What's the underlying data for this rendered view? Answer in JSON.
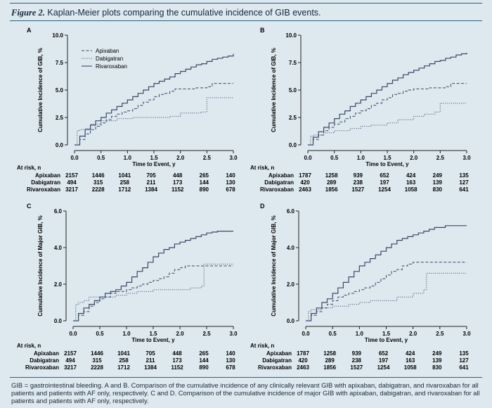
{
  "figure": {
    "label": "Figure 2.",
    "title": "Kaplan-Meier plots comparing the cumulative incidence of GIB events."
  },
  "caption": "GIB = gastrointestinal bleeding. A and B. Comparison of the cumulative incidence of any clinically relevant GIB with apixaban, dabigatran, and rivaroxaban for all patients and patients with AF only, respectively. C and D. Comparison of the cumulative incidence of major GIB with apixaban, dabigatran, and rivaroxaban for all patients and patients with AF only, respectively.",
  "colors": {
    "background": "#dde8ef",
    "line": "#3a4a68",
    "rule": "#2f5f82"
  },
  "chart_data": [
    {
      "type": "line",
      "panel": "A",
      "ylabel": "Cumulative Incidence of GIB, %",
      "xlabel": "Time to Event, y",
      "xlim": [
        0,
        3
      ],
      "ylim": [
        0,
        10
      ],
      "xticks": [
        "0.0",
        "0.5",
        "1.0",
        "1.5",
        "2.0",
        "2.5",
        "3.0"
      ],
      "yticks": [
        "0.0",
        "2.5",
        "5.0",
        "7.5",
        "10.0"
      ],
      "legend": true,
      "series": [
        {
          "name": "Apixaban",
          "style": "dashed",
          "x": [
            0,
            0.1,
            0.2,
            0.3,
            0.4,
            0.5,
            0.6,
            0.7,
            0.8,
            0.9,
            1.0,
            1.1,
            1.2,
            1.3,
            1.4,
            1.5,
            1.6,
            1.7,
            1.8,
            1.9,
            2.0,
            2.1,
            2.2,
            2.3,
            2.4,
            2.5,
            2.6,
            2.7,
            2.8,
            2.9,
            3.0
          ],
          "y": [
            0,
            0.5,
            1.0,
            1.4,
            1.7,
            2.0,
            2.3,
            2.6,
            2.8,
            3.0,
            3.1,
            3.3,
            3.6,
            3.9,
            4.1,
            4.4,
            4.6,
            4.7,
            4.9,
            5.1,
            5.1,
            5.1,
            5.1,
            5.2,
            5.2,
            5.3,
            5.6,
            5.6,
            5.6,
            5.6,
            5.6
          ]
        },
        {
          "name": "Dabigatran",
          "style": "dotted",
          "x": [
            0,
            0.05,
            0.1,
            0.2,
            0.3,
            0.5,
            0.8,
            1.0,
            1.1,
            1.2,
            1.5,
            1.8,
            2.0,
            2.1,
            2.2,
            2.4,
            2.5,
            3.0
          ],
          "y": [
            0,
            1.3,
            1.4,
            1.5,
            1.9,
            2.2,
            2.4,
            2.4,
            2.5,
            2.5,
            2.5,
            2.6,
            2.9,
            2.9,
            2.9,
            3.0,
            4.3,
            4.3
          ]
        },
        {
          "name": "Rivaroxaban",
          "style": "solid",
          "x": [
            0,
            0.1,
            0.2,
            0.3,
            0.4,
            0.5,
            0.6,
            0.7,
            0.8,
            0.9,
            1.0,
            1.1,
            1.2,
            1.3,
            1.4,
            1.5,
            1.6,
            1.7,
            1.8,
            1.9,
            2.0,
            2.1,
            2.2,
            2.3,
            2.4,
            2.5,
            2.6,
            2.7,
            2.8,
            2.9,
            3.0
          ],
          "y": [
            0,
            0.8,
            1.4,
            1.8,
            2.2,
            2.5,
            2.9,
            3.2,
            3.5,
            3.8,
            4.1,
            4.4,
            4.7,
            5.0,
            5.3,
            5.6,
            5.8,
            6.0,
            6.2,
            6.5,
            6.7,
            6.9,
            7.1,
            7.3,
            7.4,
            7.6,
            7.8,
            7.9,
            8.0,
            8.1,
            8.3
          ]
        }
      ],
      "at_risk": {
        "label": "At risk, n",
        "rows": [
          {
            "name": "Apixaban",
            "values": [
              "2157",
              "1446",
              "1041",
              "705",
              "448",
              "265",
              "140"
            ]
          },
          {
            "name": "Dabigatran",
            "values": [
              "494",
              "315",
              "258",
              "211",
              "173",
              "144",
              "130"
            ]
          },
          {
            "name": "Rivaroxaban",
            "values": [
              "3217",
              "2228",
              "1712",
              "1384",
              "1152",
              "890",
              "678"
            ]
          }
        ]
      }
    },
    {
      "type": "line",
      "panel": "B",
      "ylabel": "Cumulative Incidence of GIB, %",
      "xlabel": "Time to Event, y",
      "xlim": [
        0,
        3
      ],
      "ylim": [
        0,
        10
      ],
      "xticks": [
        "0.0",
        "0.5",
        "1.0",
        "1.5",
        "2.0",
        "2.5",
        "3.0"
      ],
      "yticks": [
        "0.0",
        "2.5",
        "5.0",
        "7.5",
        "10.0"
      ],
      "legend": false,
      "series": [
        {
          "name": "Apixaban",
          "style": "dashed",
          "x": [
            0,
            0.1,
            0.2,
            0.3,
            0.4,
            0.5,
            0.6,
            0.7,
            0.8,
            0.9,
            1.0,
            1.1,
            1.2,
            1.3,
            1.4,
            1.5,
            1.6,
            1.7,
            1.8,
            1.9,
            2.0,
            2.1,
            2.2,
            2.3,
            2.4,
            2.5,
            2.6,
            2.7,
            2.8,
            2.9,
            3.0
          ],
          "y": [
            0,
            0.5,
            0.9,
            1.3,
            1.6,
            1.9,
            2.1,
            2.4,
            2.6,
            2.9,
            3.1,
            3.3,
            3.6,
            3.8,
            4.1,
            4.3,
            4.6,
            4.7,
            4.9,
            5.0,
            5.1,
            5.1,
            5.1,
            5.2,
            5.2,
            5.2,
            5.3,
            5.6,
            5.6,
            5.6,
            5.6
          ]
        },
        {
          "name": "Dabigatran",
          "style": "dotted",
          "x": [
            0,
            0.05,
            0.1,
            0.3,
            0.5,
            0.8,
            1.0,
            1.2,
            1.5,
            1.7,
            2.0,
            2.2,
            2.4,
            2.5,
            3.0
          ],
          "y": [
            0,
            0.8,
            0.9,
            1.1,
            1.3,
            1.5,
            1.7,
            1.8,
            2.0,
            2.3,
            2.6,
            2.8,
            3.0,
            3.8,
            3.8
          ]
        },
        {
          "name": "Rivaroxaban",
          "style": "solid",
          "x": [
            0,
            0.1,
            0.2,
            0.3,
            0.4,
            0.5,
            0.6,
            0.7,
            0.8,
            0.9,
            1.0,
            1.1,
            1.2,
            1.3,
            1.4,
            1.5,
            1.6,
            1.7,
            1.8,
            1.9,
            2.0,
            2.1,
            2.2,
            2.3,
            2.4,
            2.5,
            2.6,
            2.7,
            2.8,
            2.9,
            3.0
          ],
          "y": [
            0,
            0.7,
            1.2,
            1.6,
            2.0,
            2.4,
            2.8,
            3.1,
            3.5,
            3.8,
            4.1,
            4.4,
            4.7,
            5.0,
            5.3,
            5.6,
            5.9,
            6.1,
            6.4,
            6.6,
            6.8,
            7.0,
            7.2,
            7.4,
            7.6,
            7.7,
            7.9,
            8.0,
            8.2,
            8.3,
            8.4
          ]
        }
      ],
      "at_risk": {
        "label": "At risk, n",
        "rows": [
          {
            "name": "Apixaban",
            "values": [
              "1787",
              "1258",
              "939",
              "652",
              "424",
              "249",
              "135"
            ]
          },
          {
            "name": "Dabigatran",
            "values": [
              "420",
              "289",
              "238",
              "197",
              "163",
              "139",
              "127"
            ]
          },
          {
            "name": "Rivaroxaban",
            "values": [
              "2463",
              "1856",
              "1527",
              "1254",
              "1058",
              "830",
              "641"
            ]
          }
        ]
      }
    },
    {
      "type": "line",
      "panel": "C",
      "ylabel": "Cumulative Incidence of Major GIB, %",
      "xlabel": "Time to Event, y",
      "xlim": [
        0,
        3
      ],
      "ylim": [
        0,
        6
      ],
      "xticks": [
        "0.0",
        "0.5",
        "1.0",
        "1.5",
        "2.0",
        "2.5",
        "3.0"
      ],
      "yticks": [
        "0.0",
        "2.0",
        "4.0",
        "6.0"
      ],
      "legend": false,
      "series": [
        {
          "name": "Apixaban",
          "style": "dashed",
          "x": [
            0,
            0.1,
            0.2,
            0.3,
            0.4,
            0.5,
            0.6,
            0.7,
            0.8,
            0.9,
            1.0,
            1.1,
            1.2,
            1.3,
            1.4,
            1.5,
            1.6,
            1.7,
            1.8,
            1.9,
            2.0,
            2.1,
            2.2,
            2.3,
            2.4,
            2.5,
            2.6,
            2.7,
            2.8,
            2.9,
            3.0
          ],
          "y": [
            0,
            0.3,
            0.5,
            0.8,
            1.0,
            1.2,
            1.3,
            1.5,
            1.6,
            1.6,
            1.7,
            1.8,
            1.9,
            2.0,
            2.1,
            2.2,
            2.3,
            2.4,
            2.6,
            2.8,
            2.9,
            3.0,
            3.0,
            3.0,
            3.0,
            3.0,
            3.0,
            3.0,
            3.0,
            3.0,
            3.0
          ]
        },
        {
          "name": "Dabigatran",
          "style": "dotted",
          "x": [
            0,
            0.05,
            0.1,
            0.2,
            0.3,
            0.5,
            0.8,
            1.0,
            1.2,
            1.5,
            1.8,
            2.0,
            2.2,
            2.4,
            2.45,
            2.8,
            3.0
          ],
          "y": [
            0,
            0.9,
            1.0,
            1.1,
            1.3,
            1.3,
            1.4,
            1.5,
            1.6,
            1.7,
            1.7,
            1.7,
            1.8,
            1.9,
            3.1,
            3.1,
            3.1
          ]
        },
        {
          "name": "Rivaroxaban",
          "style": "solid",
          "x": [
            0,
            0.1,
            0.2,
            0.3,
            0.4,
            0.5,
            0.6,
            0.7,
            0.8,
            0.9,
            1.0,
            1.1,
            1.2,
            1.3,
            1.4,
            1.5,
            1.6,
            1.7,
            1.8,
            1.9,
            2.0,
            2.1,
            2.2,
            2.3,
            2.4,
            2.5,
            2.6,
            2.7,
            2.8,
            2.9,
            3.0
          ],
          "y": [
            0,
            0.4,
            0.7,
            0.9,
            1.1,
            1.3,
            1.5,
            1.6,
            1.7,
            1.9,
            2.1,
            2.4,
            2.7,
            2.9,
            3.2,
            3.5,
            3.7,
            3.9,
            4.0,
            4.2,
            4.3,
            4.4,
            4.5,
            4.6,
            4.7,
            4.8,
            4.85,
            4.9,
            4.9,
            4.9,
            4.9
          ]
        }
      ],
      "at_risk": {
        "label": "At risk, n",
        "rows": [
          {
            "name": "Apixaban",
            "values": [
              "2157",
              "1446",
              "1041",
              "705",
              "448",
              "265",
              "140"
            ]
          },
          {
            "name": "Dabigatran",
            "values": [
              "494",
              "315",
              "258",
              "211",
              "173",
              "144",
              "130"
            ]
          },
          {
            "name": "Rivaroxaban",
            "values": [
              "3217",
              "2228",
              "1712",
              "1384",
              "1152",
              "890",
              "678"
            ]
          }
        ]
      }
    },
    {
      "type": "line",
      "panel": "D",
      "ylabel": "Cumulative Incidence of Major GIB, %",
      "xlabel": "Time to Event, y",
      "xlim": [
        0,
        3
      ],
      "ylim": [
        0,
        6
      ],
      "xticks": [
        "0.0",
        "0.5",
        "1.0",
        "1.5",
        "2.0",
        "2.5",
        "3.0"
      ],
      "yticks": [
        "0.0",
        "2.0",
        "4.0",
        "6.0"
      ],
      "legend": false,
      "series": [
        {
          "name": "Apixaban",
          "style": "dashed",
          "x": [
            0,
            0.1,
            0.2,
            0.3,
            0.4,
            0.5,
            0.6,
            0.7,
            0.8,
            0.9,
            1.0,
            1.1,
            1.2,
            1.3,
            1.4,
            1.5,
            1.6,
            1.7,
            1.8,
            1.9,
            2.0,
            2.1,
            2.2,
            2.3,
            2.4,
            2.5,
            2.6,
            2.7,
            2.8,
            2.9,
            3.0
          ],
          "y": [
            0,
            0.3,
            0.5,
            0.7,
            0.9,
            1.1,
            1.3,
            1.4,
            1.5,
            1.6,
            1.7,
            1.8,
            1.9,
            2.1,
            2.3,
            2.5,
            2.7,
            2.8,
            3.0,
            3.1,
            3.2,
            3.2,
            3.2,
            3.2,
            3.2,
            3.2,
            3.2,
            3.2,
            3.2,
            3.2,
            3.2
          ]
        },
        {
          "name": "Dabigatran",
          "style": "dotted",
          "x": [
            0,
            0.05,
            0.1,
            0.3,
            0.5,
            0.8,
            1.0,
            1.2,
            1.5,
            1.7,
            2.0,
            2.1,
            2.2,
            2.25,
            2.6,
            3.0
          ],
          "y": [
            0,
            0.5,
            0.6,
            0.7,
            0.8,
            0.9,
            1.0,
            1.1,
            1.1,
            1.3,
            1.5,
            1.5,
            1.7,
            2.6,
            2.6,
            2.6
          ]
        },
        {
          "name": "Rivaroxaban",
          "style": "solid",
          "x": [
            0,
            0.1,
            0.2,
            0.3,
            0.4,
            0.5,
            0.6,
            0.7,
            0.8,
            0.9,
            1.0,
            1.1,
            1.2,
            1.3,
            1.4,
            1.5,
            1.6,
            1.7,
            1.8,
            1.9,
            2.0,
            2.1,
            2.2,
            2.3,
            2.4,
            2.5,
            2.6,
            2.7,
            2.8,
            2.9,
            3.0
          ],
          "y": [
            0,
            0.4,
            0.7,
            1.0,
            1.2,
            1.5,
            1.8,
            2.1,
            2.4,
            2.7,
            3.0,
            3.2,
            3.4,
            3.6,
            3.8,
            4.0,
            4.2,
            4.4,
            4.5,
            4.6,
            4.7,
            4.8,
            4.9,
            5.0,
            5.1,
            5.1,
            5.2,
            5.2,
            5.2,
            5.2,
            5.2
          ]
        }
      ],
      "at_risk": {
        "label": "At risk, n",
        "rows": [
          {
            "name": "Apixaban",
            "values": [
              "1787",
              "1258",
              "939",
              "652",
              "424",
              "249",
              "135"
            ]
          },
          {
            "name": "Dabigatran",
            "values": [
              "420",
              "289",
              "238",
              "197",
              "163",
              "139",
              "127"
            ]
          },
          {
            "name": "Rivaroxaban",
            "values": [
              "2463",
              "1856",
              "1527",
              "1254",
              "1058",
              "830",
              "641"
            ]
          }
        ]
      }
    }
  ]
}
